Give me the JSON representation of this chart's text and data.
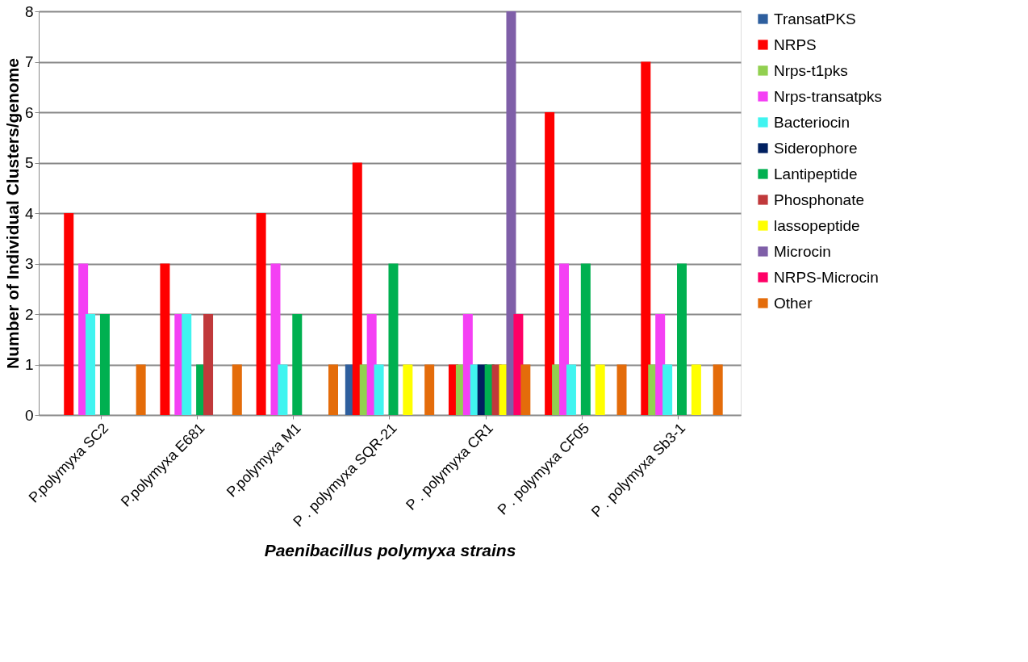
{
  "chart_data": {
    "type": "bar",
    "xlabel": "Paenibacillus polymyxa strains",
    "ylabel": "Number of Individual Clusters/genome",
    "categories": [
      "P.polymyxa SC2",
      "P.polymyxa E681",
      "P.polymyxa M1",
      "P . polymyxa SQR-21",
      "P . polymyxa CR1",
      "P . polymyxa CF05",
      "P . polymyxa Sb3-1"
    ],
    "series": [
      {
        "name": "TransatPKS",
        "color": "#2e5f9e",
        "values": [
          0,
          0,
          0,
          1,
          0,
          0,
          0
        ]
      },
      {
        "name": "NRPS",
        "color": "#ff0000",
        "values": [
          4,
          3,
          4,
          5,
          1,
          6,
          7
        ]
      },
      {
        "name": "Nrps-t1pks",
        "color": "#92d050",
        "values": [
          0,
          0,
          0,
          1,
          1,
          1,
          1
        ]
      },
      {
        "name": "Nrps-transatpks",
        "color": "#f440f4",
        "values": [
          3,
          2,
          3,
          2,
          2,
          3,
          2
        ]
      },
      {
        "name": "Bacteriocin",
        "color": "#40f4f0",
        "values": [
          2,
          2,
          1,
          1,
          1,
          1,
          1
        ]
      },
      {
        "name": "Siderophore",
        "color": "#002060",
        "values": [
          0,
          0,
          0,
          0,
          1,
          0,
          0
        ]
      },
      {
        "name": "Lantipeptide",
        "color": "#00b050",
        "values": [
          2,
          1,
          2,
          3,
          1,
          3,
          3
        ]
      },
      {
        "name": "Phosphonate",
        "color": "#c0393b",
        "values": [
          0,
          2,
          0,
          0,
          1,
          0,
          0
        ]
      },
      {
        "name": "lassopeptide",
        "color": "#ffff00",
        "values": [
          0,
          0,
          0,
          1,
          1,
          1,
          1
        ]
      },
      {
        "name": "Microcin",
        "color": "#7f5fa8",
        "values": [
          0,
          0,
          0,
          0,
          8,
          0,
          0
        ]
      },
      {
        "name": "NRPS-Microcin",
        "color": "#ff0066",
        "values": [
          0,
          0,
          0,
          0,
          2,
          0,
          0
        ]
      },
      {
        "name": "Other",
        "color": "#e46c0a",
        "values": [
          1,
          1,
          1,
          1,
          1,
          1,
          1
        ]
      }
    ],
    "ylim": [
      0,
      8
    ],
    "yticks": [
      0,
      1,
      2,
      3,
      4,
      5,
      6,
      7,
      8
    ],
    "grid": "y",
    "legend": "right"
  }
}
